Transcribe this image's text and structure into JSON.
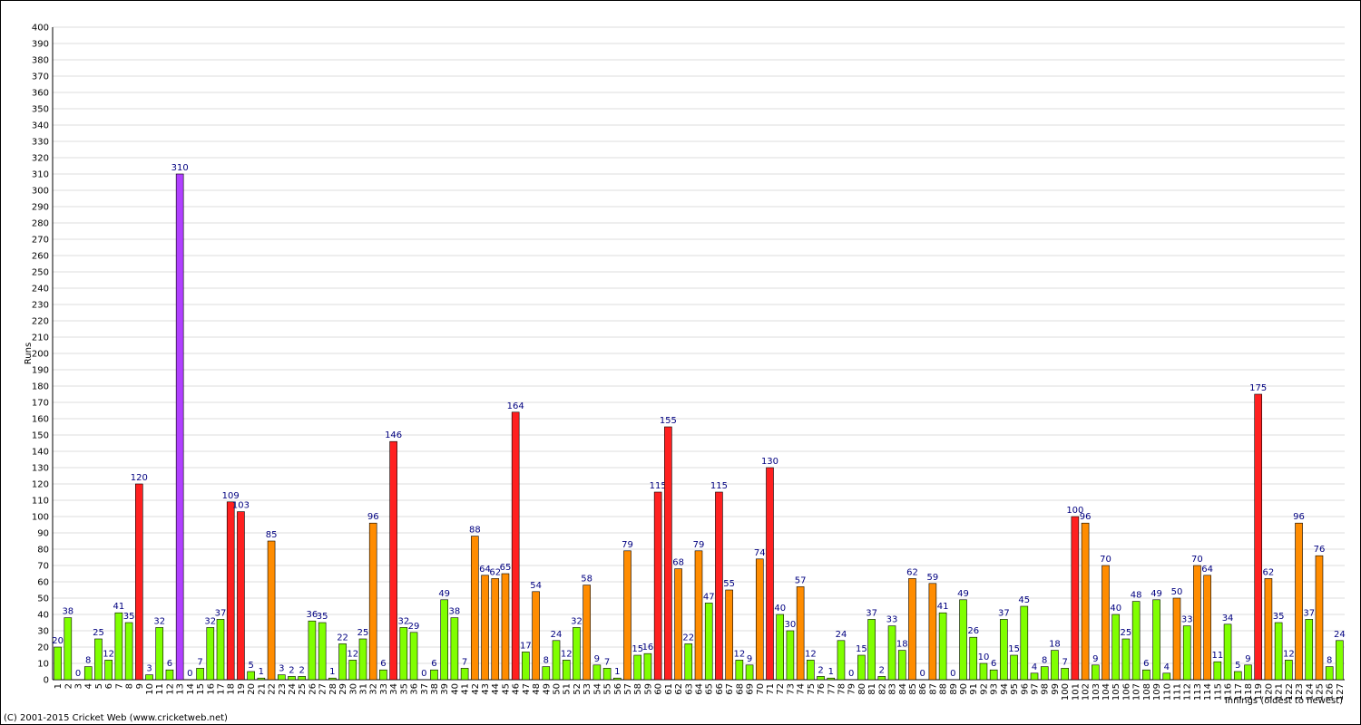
{
  "chart_data": {
    "type": "bar",
    "y_label": "Runs",
    "x_label": "Innings (oldest to newest)",
    "footer": "(C) 2001-2015 Cricket Web (www.cricketweb.net)",
    "categories": [
      "1",
      "2",
      "3",
      "4",
      "5",
      "6",
      "7",
      "8",
      "9",
      "10",
      "11",
      "12",
      "13",
      "14",
      "15",
      "16",
      "17",
      "18",
      "19",
      "20",
      "21",
      "22",
      "23",
      "24",
      "25",
      "26",
      "27",
      "28",
      "29",
      "30",
      "31",
      "32",
      "33",
      "34",
      "35",
      "36",
      "37",
      "38",
      "39",
      "40",
      "41",
      "42",
      "43",
      "44",
      "45",
      "46",
      "47",
      "48",
      "49",
      "50",
      "51",
      "52",
      "53",
      "54",
      "55",
      "56",
      "57",
      "58",
      "59",
      "60",
      "61",
      "62",
      "63",
      "64",
      "65",
      "66",
      "67",
      "68",
      "69",
      "70",
      "71",
      "72",
      "73",
      "74",
      "75",
      "76",
      "77",
      "78",
      "79",
      "80",
      "81",
      "82",
      "83",
      "84",
      "85",
      "86",
      "87",
      "88",
      "89",
      "90",
      "91",
      "92",
      "93",
      "94",
      "95",
      "96",
      "97",
      "98",
      "99",
      "100",
      "101",
      "102",
      "103",
      "104",
      "105",
      "106",
      "107",
      "108",
      "109",
      "110",
      "111",
      "112",
      "113",
      "114",
      "115",
      "116",
      "117",
      "118",
      "119",
      "120",
      "121",
      "122",
      "123",
      "124",
      "125",
      "126",
      "127"
    ],
    "values": [
      20,
      38,
      0,
      8,
      25,
      12,
      41,
      35,
      120,
      3,
      32,
      6,
      310,
      0,
      7,
      32,
      37,
      109,
      103,
      5,
      1,
      85,
      3,
      2,
      2,
      36,
      35,
      1,
      22,
      12,
      25,
      96,
      6,
      146,
      32,
      29,
      0,
      6,
      49,
      38,
      7,
      88,
      64,
      62,
      65,
      164,
      17,
      54,
      8,
      24,
      12,
      32,
      58,
      9,
      7,
      1,
      79,
      15,
      16,
      115,
      155,
      68,
      22,
      79,
      47,
      115,
      55,
      12,
      9,
      74,
      130,
      40,
      30,
      57,
      12,
      2,
      1,
      24,
      0,
      15,
      37,
      2,
      33,
      18,
      62,
      0,
      59,
      41,
      0,
      49,
      26,
      10,
      6,
      37,
      15,
      45,
      4,
      8,
      18,
      7,
      100,
      96,
      9,
      70,
      40,
      25,
      48,
      6,
      49,
      4,
      50,
      33,
      70,
      64,
      11,
      34,
      5,
      9,
      175,
      62,
      35,
      12,
      96,
      37,
      76,
      8,
      24
    ],
    "colors": [
      "#80ff00",
      "#80ff00",
      "#80ff00",
      "#80ff00",
      "#80ff00",
      "#80ff00",
      "#80ff00",
      "#80ff00",
      "#ff2020",
      "#80ff00",
      "#80ff00",
      "#80ff00",
      "#b040ff",
      "#80ff00",
      "#80ff00",
      "#80ff00",
      "#80ff00",
      "#ff2020",
      "#ff2020",
      "#80ff00",
      "#80ff00",
      "#ff8c00",
      "#80ff00",
      "#80ff00",
      "#80ff00",
      "#80ff00",
      "#80ff00",
      "#80ff00",
      "#80ff00",
      "#80ff00",
      "#80ff00",
      "#ff8c00",
      "#80ff00",
      "#ff2020",
      "#80ff00",
      "#80ff00",
      "#80ff00",
      "#80ff00",
      "#80ff00",
      "#80ff00",
      "#80ff00",
      "#ff8c00",
      "#ff8c00",
      "#ff8c00",
      "#ff8c00",
      "#ff2020",
      "#80ff00",
      "#ff8c00",
      "#80ff00",
      "#80ff00",
      "#80ff00",
      "#80ff00",
      "#ff8c00",
      "#80ff00",
      "#80ff00",
      "#80ff00",
      "#ff8c00",
      "#80ff00",
      "#80ff00",
      "#ff2020",
      "#ff2020",
      "#ff8c00",
      "#80ff00",
      "#ff8c00",
      "#80ff00",
      "#ff2020",
      "#ff8c00",
      "#80ff00",
      "#80ff00",
      "#ff8c00",
      "#ff2020",
      "#80ff00",
      "#80ff00",
      "#ff8c00",
      "#80ff00",
      "#80ff00",
      "#80ff00",
      "#80ff00",
      "#80ff00",
      "#80ff00",
      "#80ff00",
      "#80ff00",
      "#80ff00",
      "#80ff00",
      "#ff8c00",
      "#80ff00",
      "#ff8c00",
      "#80ff00",
      "#80ff00",
      "#80ff00",
      "#80ff00",
      "#80ff00",
      "#80ff00",
      "#80ff00",
      "#80ff00",
      "#80ff00",
      "#80ff00",
      "#80ff00",
      "#80ff00",
      "#80ff00",
      "#ff2020",
      "#ff8c00",
      "#80ff00",
      "#ff8c00",
      "#80ff00",
      "#80ff00",
      "#80ff00",
      "#80ff00",
      "#80ff00",
      "#80ff00",
      "#ff8c00",
      "#80ff00",
      "#ff8c00",
      "#ff8c00",
      "#80ff00",
      "#80ff00",
      "#80ff00",
      "#80ff00",
      "#ff2020",
      "#ff8c00",
      "#80ff00",
      "#80ff00",
      "#ff8c00",
      "#80ff00",
      "#ff8c00",
      "#80ff00",
      "#80ff00"
    ],
    "ylim": [
      0,
      400
    ],
    "yticks": [
      0,
      10,
      20,
      30,
      40,
      50,
      60,
      70,
      80,
      90,
      100,
      110,
      120,
      130,
      140,
      150,
      160,
      170,
      180,
      190,
      200,
      210,
      220,
      230,
      240,
      250,
      260,
      270,
      280,
      290,
      300,
      310,
      320,
      330,
      340,
      350,
      360,
      370,
      380,
      390,
      400
    ],
    "grid": true
  }
}
